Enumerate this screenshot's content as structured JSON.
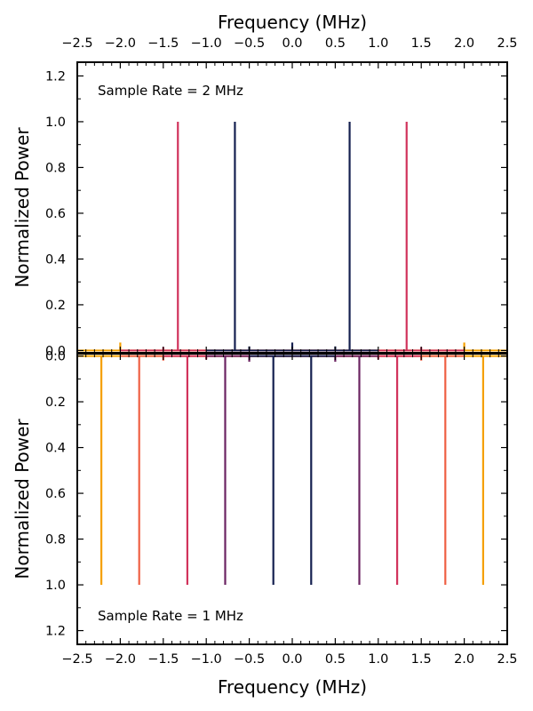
{
  "chart_data": [
    {
      "type": "line",
      "panel": "top",
      "xlabel": "Frequency (MHz)",
      "ylabel": "Normalized Power",
      "annotation": "Sample Rate = 2 MHz",
      "xlim": [
        -2.5,
        2.5
      ],
      "ylim": [
        -0.01,
        1.26
      ],
      "inverted_y": false,
      "x_ticks": [
        "−2.5",
        "−2.0",
        "−1.5",
        "−1.0",
        "−0.5",
        "0.0",
        "0.5",
        "1.0",
        "1.5",
        "2.0",
        "2.5"
      ],
      "y_ticks": [
        "0.0",
        "0.2",
        "0.4",
        "0.6",
        "0.8",
        "1.0",
        "1.2"
      ],
      "x_tick_position": "top",
      "legend": "none",
      "grid": false,
      "series": [
        {
          "color": "#f5a000",
          "baseline": [
            [
              -2.5,
              2.5
            ]
          ],
          "peaks": [
            {
              "x": -2.0,
              "y": 0.035
            },
            {
              "x": 2.0,
              "y": 0.035
            }
          ]
        },
        {
          "color": "#d1335c",
          "baseline": [
            [
              -2.0,
              2.0
            ]
          ],
          "peaks": [
            {
              "x": -1.33,
              "y": 1.0
            },
            {
              "x": 1.33,
              "y": 1.0
            },
            {
              "x": -1.5,
              "y": 0.015
            },
            {
              "x": 1.5,
              "y": 0.015
            }
          ]
        },
        {
          "color": "#152050",
          "baseline": [
            [
              -1.0,
              1.0
            ]
          ],
          "peaks": [
            {
              "x": -0.667,
              "y": 1.0
            },
            {
              "x": 0.667,
              "y": 1.0
            },
            {
              "x": 0.0,
              "y": 0.035
            },
            {
              "x": -0.5,
              "y": 0.018
            },
            {
              "x": 0.5,
              "y": 0.018
            }
          ]
        }
      ]
    },
    {
      "type": "line",
      "panel": "bottom",
      "xlabel": "Frequency (MHz)",
      "ylabel": "Normalized Power",
      "annotation": "Sample Rate = 1 MHz",
      "xlim": [
        -2.5,
        2.5
      ],
      "ylim": [
        1.26,
        -0.01
      ],
      "inverted_y": true,
      "x_ticks": [
        "−2.5",
        "−2.0",
        "−1.5",
        "−1.0",
        "−0.5",
        "0.0",
        "0.5",
        "1.0",
        "1.5",
        "2.0",
        "2.5"
      ],
      "y_ticks": [
        "0.0",
        "0.2",
        "0.4",
        "0.6",
        "0.8",
        "1.0",
        "1.2"
      ],
      "x_tick_position": "bottom",
      "legend": "none",
      "grid": false,
      "series": [
        {
          "color": "#f5a000",
          "baseline": [
            [
              -2.5,
              2.5
            ]
          ],
          "peaks": [
            {
              "x": -2.22,
              "y": 1.0
            },
            {
              "x": 2.22,
              "y": 1.0
            }
          ]
        },
        {
          "color": "#ef6044",
          "baseline": [
            [
              -2.0,
              2.0
            ]
          ],
          "peaks": [
            {
              "x": -1.78,
              "y": 1.0
            },
            {
              "x": 1.78,
              "y": 1.0
            },
            {
              "x": -1.5,
              "y": 0.02
            },
            {
              "x": 1.5,
              "y": 0.02
            }
          ]
        },
        {
          "color": "#d1335c",
          "baseline": [
            [
              -1.5,
              1.5
            ]
          ],
          "peaks": [
            {
              "x": -1.22,
              "y": 1.0
            },
            {
              "x": 1.22,
              "y": 1.0
            },
            {
              "x": -1.0,
              "y": 0.015
            },
            {
              "x": 1.0,
              "y": 0.015
            }
          ]
        },
        {
          "color": "#6b2462",
          "baseline": [
            [
              -1.0,
              1.0
            ]
          ],
          "peaks": [
            {
              "x": -0.78,
              "y": 1.0
            },
            {
              "x": 0.78,
              "y": 1.0
            },
            {
              "x": -0.5,
              "y": 0.025
            },
            {
              "x": 0.5,
              "y": 0.025
            }
          ]
        },
        {
          "color": "#152050",
          "baseline": [
            [
              -0.5,
              0.5
            ]
          ],
          "peaks": [
            {
              "x": -0.22,
              "y": 1.0
            },
            {
              "x": 0.22,
              "y": 1.0
            }
          ]
        }
      ]
    }
  ]
}
